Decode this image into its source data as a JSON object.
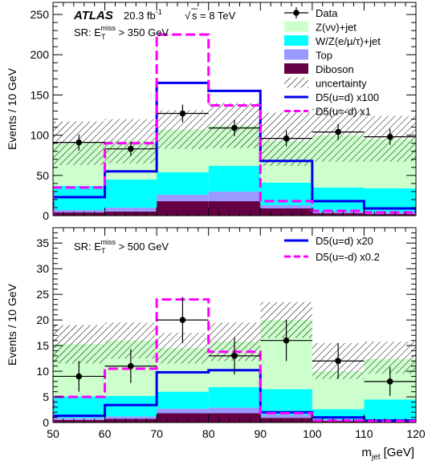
{
  "colors": {
    "z_nunu": "#ccffcc",
    "w_z_lep": "#00ffff",
    "top": "#9999ff",
    "diboson": "#660044",
    "signal_ud": "#0000ee",
    "signal_umd": "#ff00ff",
    "data": "#000000",
    "hatch": "#000000"
  },
  "header": {
    "experiment": "ATLAS",
    "lumi_label": "20.3 fb",
    "lumi_exp": "-1",
    "sqrt_symbol": "√",
    "energy_label": "s = 8 TeV"
  },
  "chart_data": [
    {
      "type": "bar",
      "panel": "top",
      "region_label": {
        "prefix": "SR: E",
        "sub": "T",
        "sup": "miss",
        "suffix": " > 350 GeV"
      },
      "ylabel": "Events / 10 GeV",
      "xlabel": "",
      "xlim": [
        50,
        120
      ],
      "ylim": [
        0,
        265
      ],
      "yticks": [
        "0",
        "50",
        "100",
        "150",
        "200",
        "250"
      ],
      "ytick_values": [
        0,
        50,
        100,
        150,
        200,
        250
      ],
      "xticks": [],
      "xtick_values": [],
      "bin_edges": [
        50,
        60,
        70,
        80,
        90,
        100,
        110,
        120
      ],
      "stack": [
        {
          "key": "diboson",
          "values": [
            4,
            5,
            18,
            18,
            9,
            3,
            2
          ]
        },
        {
          "key": "top",
          "values": [
            3,
            5,
            8,
            12,
            4,
            2,
            2
          ]
        },
        {
          "key": "w_z_lep",
          "values": [
            30,
            35,
            28,
            32,
            28,
            30,
            30
          ]
        },
        {
          "key": "z_nunu",
          "values": [
            53,
            48,
            53,
            50,
            52,
            65,
            61
          ]
        }
      ],
      "uncertainty": {
        "up": [
          117,
          120,
          131,
          140,
          128,
          133,
          124
        ],
        "down": [
          63,
          65,
          83,
          84,
          62,
          67,
          67
        ]
      },
      "data": {
        "x": [
          55,
          65,
          75,
          85,
          95,
          105,
          115
        ],
        "y": [
          91,
          83,
          127,
          109,
          96,
          104,
          98
        ],
        "err": [
          10,
          9,
          11,
          10,
          10,
          10,
          10
        ]
      },
      "signals": [
        {
          "key": "signal_ud",
          "style": "solid",
          "values": [
            23,
            55,
            165,
            155,
            68,
            18,
            9
          ]
        },
        {
          "key": "signal_umd",
          "style": "dashed",
          "values": [
            35,
            90,
            225,
            137,
            18,
            6,
            4
          ]
        }
      ],
      "legend": {
        "placement": "top-right",
        "entries": [
          {
            "key": "data",
            "kind": "marker",
            "label": "Data"
          },
          {
            "key": "z_nunu",
            "kind": "box",
            "label": "Z(νν)+jet"
          },
          {
            "key": "w_z_lep",
            "kind": "box",
            "label": "W/Z(e/μ/τ)+jet"
          },
          {
            "key": "top",
            "kind": "box",
            "label": "Top"
          },
          {
            "key": "diboson",
            "kind": "box",
            "label": "Diboson"
          },
          {
            "key": "hatch",
            "kind": "hatch",
            "label": "uncertainty"
          },
          {
            "key": "signal_ud",
            "kind": "solid",
            "label": "D5(u=d) x100"
          },
          {
            "key": "signal_umd",
            "kind": "dashed",
            "label": "D5(u=-d) x1"
          }
        ]
      }
    },
    {
      "type": "bar",
      "panel": "bottom",
      "region_label": {
        "prefix": "SR: E",
        "sub": "T",
        "sup": "miss",
        "suffix": " > 500 GeV"
      },
      "ylabel": "Events / 10 GeV",
      "xlabel": "m",
      "xlabel_sub": "jet",
      "xlabel_unit": " [GeV]",
      "xlim": [
        50,
        120
      ],
      "ylim": [
        0,
        38
      ],
      "yticks": [
        "0",
        "5",
        "10",
        "15",
        "20",
        "25",
        "30",
        "35"
      ],
      "ytick_values": [
        0,
        5,
        10,
        15,
        20,
        25,
        30,
        35
      ],
      "xticks": [
        "50",
        "60",
        "70",
        "80",
        "90",
        "100",
        "110",
        "120"
      ],
      "xtick_values": [
        50,
        60,
        70,
        80,
        90,
        100,
        110,
        120
      ],
      "bin_edges": [
        50,
        60,
        70,
        80,
        90,
        100,
        110,
        120
      ],
      "stack": [
        {
          "key": "diboson",
          "values": [
            0.5,
            0.7,
            1.8,
            1.8,
            0.9,
            0.3,
            0.3
          ]
        },
        {
          "key": "top",
          "values": [
            0.4,
            0.5,
            0.9,
            1.1,
            0.6,
            0.3,
            0.2
          ]
        },
        {
          "key": "w_z_lep",
          "values": [
            4.2,
            4.0,
            3.3,
            4.0,
            5.0,
            2.0,
            4.0
          ]
        },
        {
          "key": "z_nunu",
          "values": [
            10.2,
            10.8,
            8.5,
            8.9,
            13.5,
            7.4,
            7.9
          ]
        }
      ],
      "uncertainty": {
        "up": [
          19.0,
          19.5,
          17.5,
          19.5,
          23.5,
          15.5,
          15.8
        ],
        "down": [
          11.5,
          12.5,
          11.5,
          12.0,
          16.5,
          8.5,
          9.5
        ]
      },
      "data": {
        "x": [
          55,
          65,
          75,
          85,
          95,
          105,
          115
        ],
        "y": [
          9,
          11,
          20,
          13,
          16,
          12,
          8
        ],
        "err": [
          3,
          3.3,
          4.5,
          3.6,
          4,
          3.5,
          2.8
        ]
      },
      "signals": [
        {
          "key": "signal_ud",
          "style": "solid",
          "values": [
            1.3,
            3.4,
            9.8,
            10.2,
            2.0,
            1.0,
            0.4
          ]
        },
        {
          "key": "signal_umd",
          "style": "dashed",
          "values": [
            5.0,
            10.5,
            24.0,
            13.8,
            1.8,
            0.4,
            0.3
          ]
        }
      ],
      "legend": {
        "placement": "top-right",
        "entries": [
          {
            "key": "signal_ud",
            "kind": "solid",
            "label": "D5(u=d) x20"
          },
          {
            "key": "signal_umd",
            "kind": "dashed",
            "label": "D5(u=-d) x0.2"
          }
        ]
      }
    }
  ]
}
